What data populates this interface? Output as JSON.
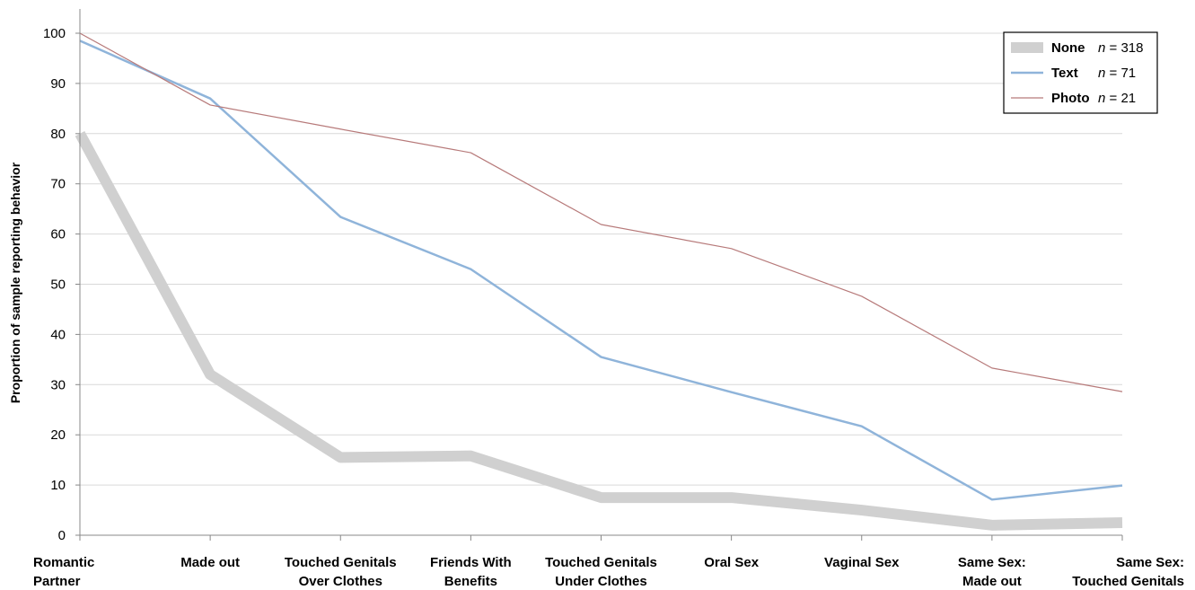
{
  "chart_data": {
    "type": "line",
    "title": "",
    "xlabel": "",
    "ylabel": "Proportion of sample reporting behavior",
    "ylim": [
      0,
      100
    ],
    "yticks": [
      0,
      10,
      20,
      30,
      40,
      50,
      60,
      70,
      80,
      90,
      100
    ],
    "grid": true,
    "legend_position": "top-right",
    "categories": [
      [
        "Romantic",
        "Partner"
      ],
      [
        "Made out"
      ],
      [
        "Touched Genitals",
        "Over Clothes"
      ],
      [
        "Friends With",
        "Benefits"
      ],
      [
        "Touched Genitals",
        "Under Clothes"
      ],
      [
        "Oral Sex"
      ],
      [
        "Vaginal Sex"
      ],
      [
        "Same Sex:",
        "Made out"
      ],
      [
        "Same Sex:",
        "Touched Genitals"
      ]
    ],
    "series": [
      {
        "name": "None",
        "n_label": "n",
        "n_value": "= 318",
        "color": "#d0d0d0",
        "values": [
          80,
          32,
          15.5,
          15.8,
          7.5,
          7.5,
          5,
          2,
          2.5
        ]
      },
      {
        "name": "Text",
        "n_label": "n",
        "n_value": "= 71",
        "color": "#8fb4da",
        "values": [
          98.5,
          87,
          63.4,
          53,
          35.5,
          28.5,
          21.7,
          7.1,
          9.9
        ]
      },
      {
        "name": "Photo",
        "n_label": "n",
        "n_value": "= 21",
        "color": "#b77a7a",
        "values": [
          100,
          85.7,
          80.9,
          76.2,
          61.9,
          57.1,
          47.6,
          33.3,
          28.6
        ]
      }
    ]
  }
}
